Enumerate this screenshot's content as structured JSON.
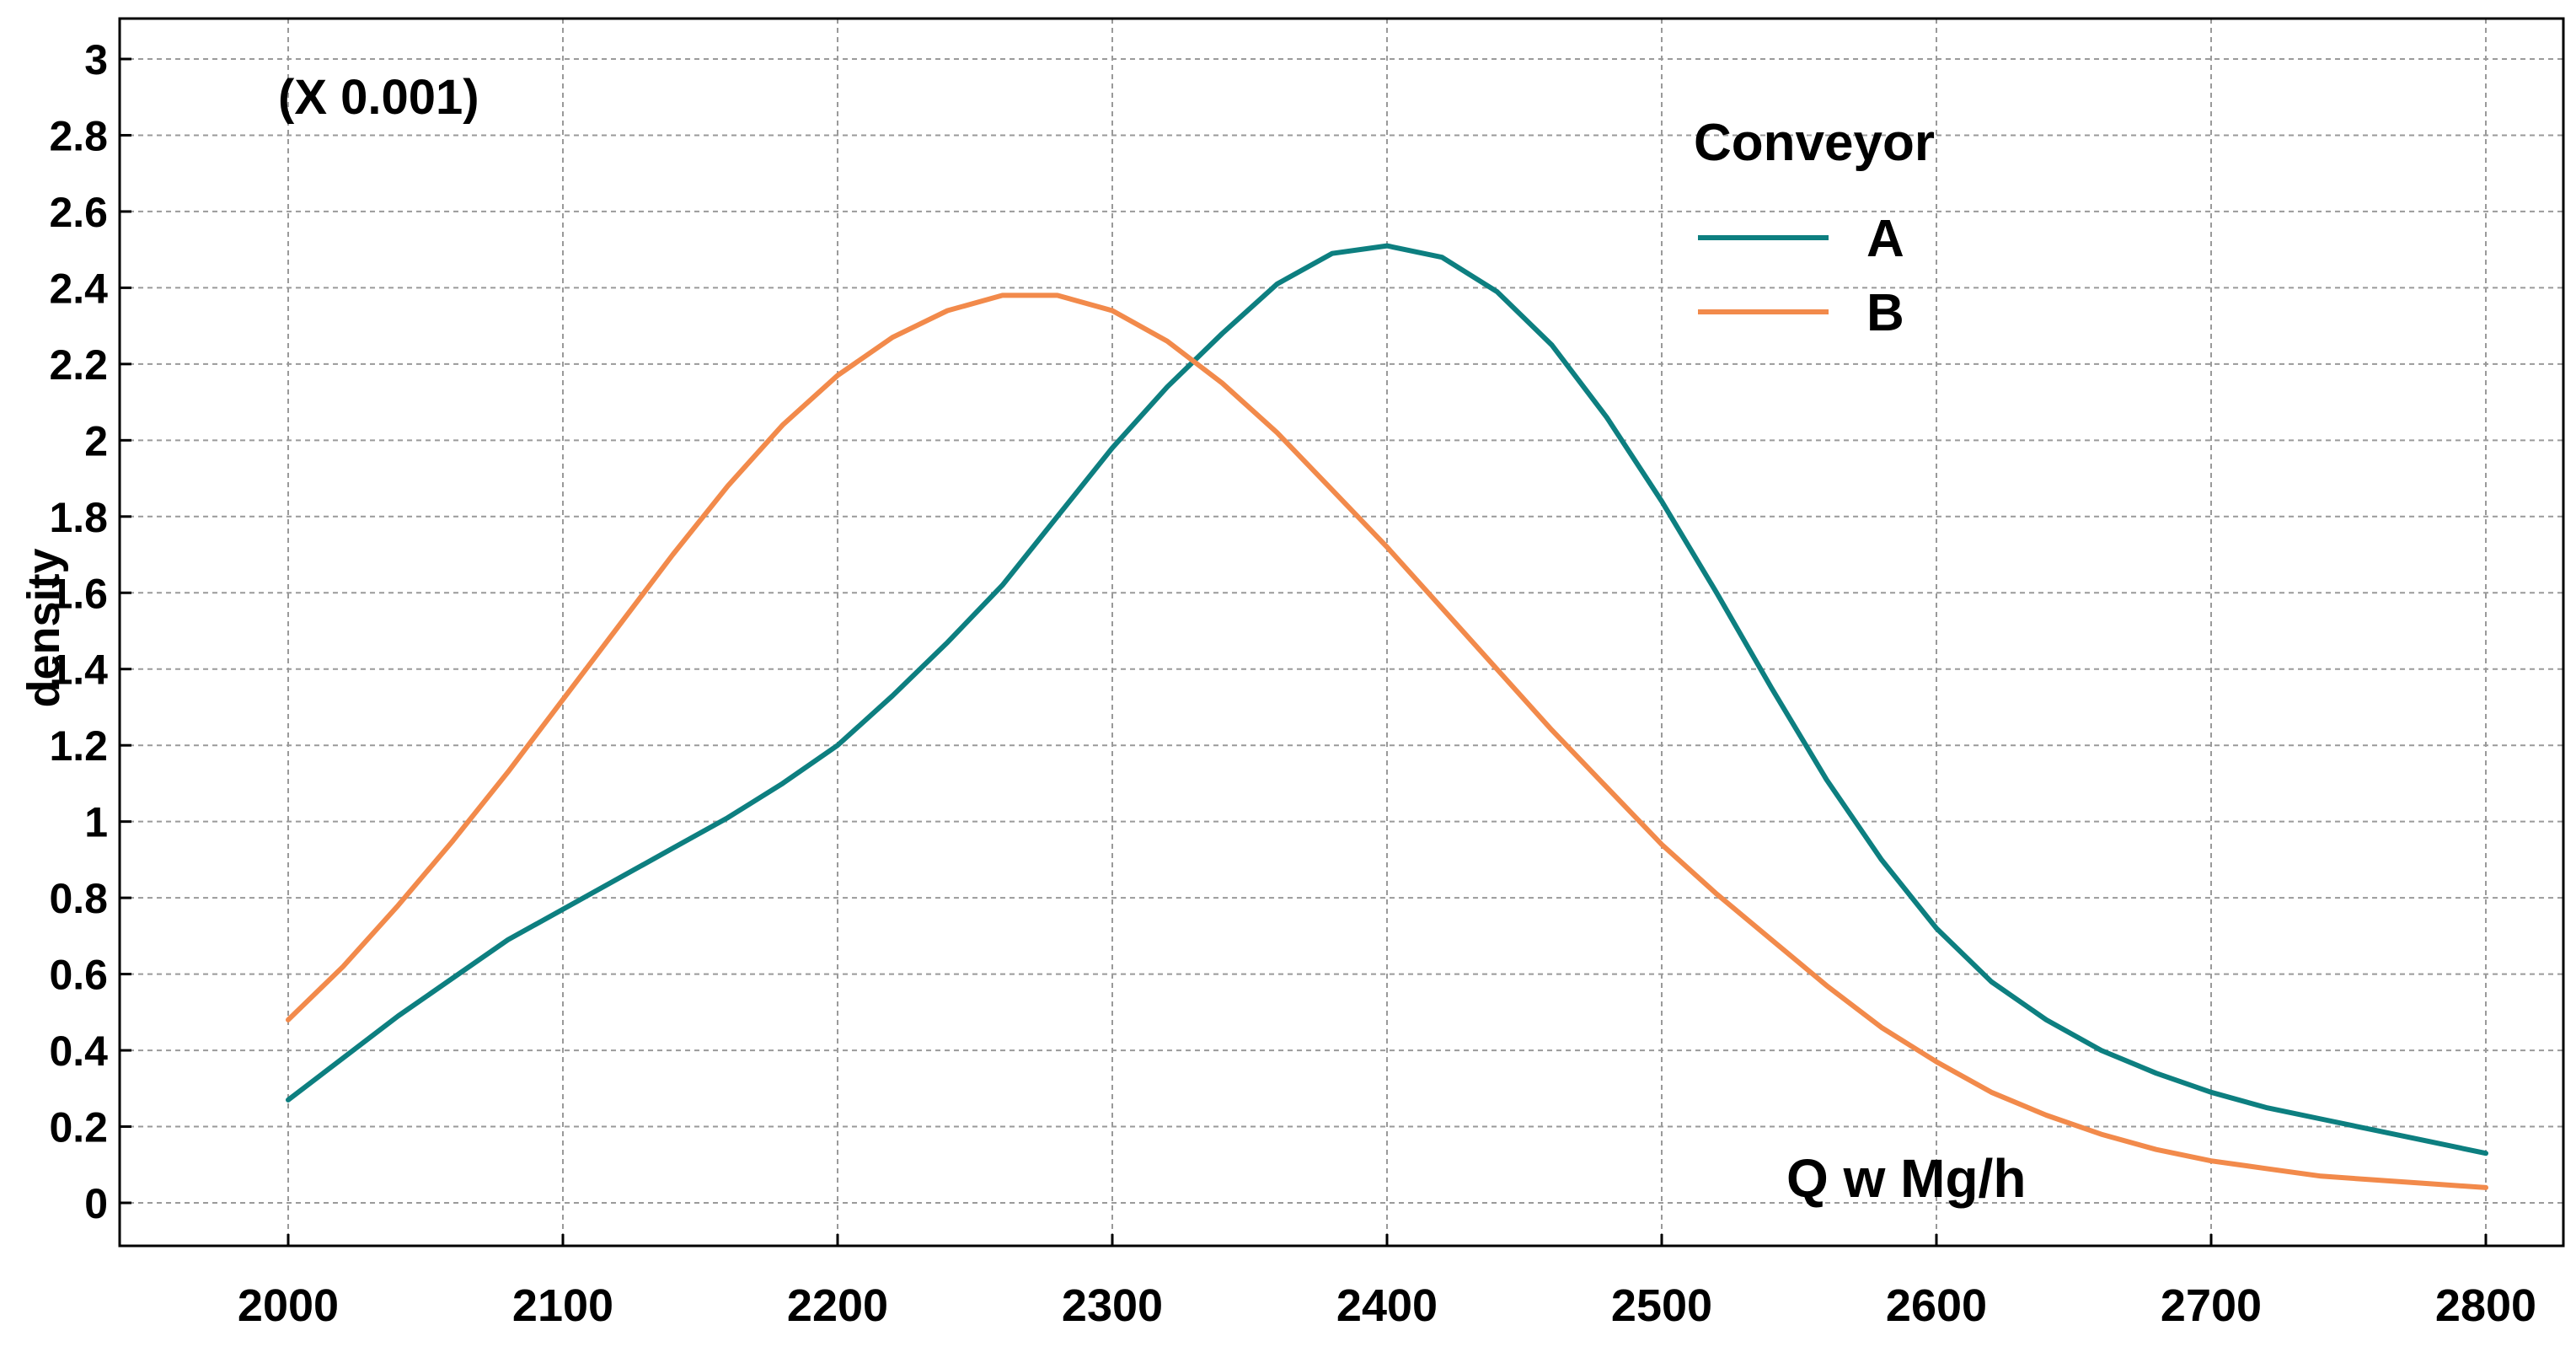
{
  "chart_data": {
    "type": "line",
    "title": "",
    "xlabel": "Q w Mg/h",
    "ylabel": "density",
    "y_scale_note": "(X 0.001)",
    "xlim": [
      2000,
      2800
    ],
    "ylim": [
      0,
      3
    ],
    "x_ticks": [
      "2000",
      "2100",
      "2200",
      "2300",
      "2400",
      "2500",
      "2600",
      "2700",
      "2800"
    ],
    "y_ticks": [
      "0",
      "0.2",
      "0.4",
      "0.6",
      "0.8",
      "1",
      "1.2",
      "1.4",
      "1.6",
      "1.8",
      "2",
      "2.2",
      "2.4",
      "2.6",
      "2.8",
      "3"
    ],
    "grid": true,
    "legend": {
      "title": "Conveyor",
      "placement": "top-right",
      "entries": [
        "A",
        "B"
      ]
    },
    "series": [
      {
        "name": "A",
        "color": "#0d7f80",
        "x": [
          2000,
          2020,
          2040,
          2060,
          2080,
          2100,
          2120,
          2140,
          2160,
          2180,
          2200,
          2220,
          2240,
          2260,
          2280,
          2300,
          2320,
          2340,
          2360,
          2380,
          2400,
          2420,
          2440,
          2460,
          2480,
          2500,
          2520,
          2540,
          2560,
          2580,
          2600,
          2620,
          2640,
          2660,
          2680,
          2700,
          2720,
          2740,
          2760,
          2780,
          2800
        ],
        "values": [
          0.27,
          0.38,
          0.49,
          0.59,
          0.69,
          0.77,
          0.85,
          0.93,
          1.01,
          1.1,
          1.2,
          1.33,
          1.47,
          1.62,
          1.8,
          1.98,
          2.14,
          2.28,
          2.41,
          2.49,
          2.51,
          2.48,
          2.39,
          2.25,
          2.06,
          1.84,
          1.6,
          1.35,
          1.11,
          0.9,
          0.72,
          0.58,
          0.48,
          0.4,
          0.34,
          0.29,
          0.25,
          0.22,
          0.19,
          0.16,
          0.13
        ]
      },
      {
        "name": "B",
        "color": "#f28a4b",
        "x": [
          2000,
          2020,
          2040,
          2060,
          2080,
          2100,
          2120,
          2140,
          2160,
          2180,
          2200,
          2220,
          2240,
          2260,
          2280,
          2300,
          2320,
          2340,
          2360,
          2380,
          2400,
          2420,
          2440,
          2460,
          2480,
          2500,
          2520,
          2540,
          2560,
          2580,
          2600,
          2620,
          2640,
          2660,
          2680,
          2700,
          2720,
          2740,
          2760,
          2780,
          2800
        ],
        "values": [
          0.48,
          0.62,
          0.78,
          0.95,
          1.13,
          1.32,
          1.51,
          1.7,
          1.88,
          2.04,
          2.17,
          2.27,
          2.34,
          2.38,
          2.38,
          2.34,
          2.26,
          2.15,
          2.02,
          1.87,
          1.72,
          1.56,
          1.4,
          1.24,
          1.09,
          0.94,
          0.81,
          0.69,
          0.57,
          0.46,
          0.37,
          0.29,
          0.23,
          0.18,
          0.14,
          0.11,
          0.09,
          0.07,
          0.06,
          0.05,
          0.04
        ]
      }
    ]
  }
}
